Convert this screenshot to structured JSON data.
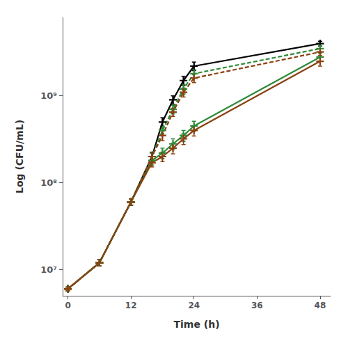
{
  "chart_data": {
    "type": "line",
    "xlabel": "Time (h)",
    "ylabel": "Log (CFU/mL)",
    "x": [
      0,
      6,
      12,
      16,
      18,
      20,
      22,
      24,
      48
    ],
    "series": [
      {
        "color": "#000000",
        "line_style": "solid",
        "values": [
          6000000.0,
          12000000.0,
          60000000.0,
          200000000.0,
          500000000.0,
          900000000.0,
          1500000000.0,
          2200000000.0,
          4000000000.0
        ],
        "error": [
          300000.0,
          1000000.0,
          5000000.0,
          20000000.0,
          60000000.0,
          100000000.0,
          180000000.0,
          250000000.0,
          250000000.0
        ]
      },
      {
        "color": "#2e8b3a",
        "line_style": "solid",
        "values": [
          6000000.0,
          12000000.0,
          60000000.0,
          180000000.0,
          220000000.0,
          280000000.0,
          350000000.0,
          450000000.0,
          2800000000.0
        ],
        "error": [
          300000.0,
          1000000.0,
          5000000.0,
          20000000.0,
          30000000.0,
          40000000.0,
          50000000.0,
          60000000.0,
          300000000.0
        ]
      },
      {
        "color": "#8B4010",
        "line_style": "solid",
        "values": [
          6000000.0,
          12000000.0,
          60000000.0,
          170000000.0,
          200000000.0,
          250000000.0,
          320000000.0,
          400000000.0,
          2500000000.0
        ],
        "error": [
          300000.0,
          1000000.0,
          5000000.0,
          18000000.0,
          25000000.0,
          35000000.0,
          45000000.0,
          55000000.0,
          300000000.0
        ]
      },
      {
        "color": "#2e8b3a",
        "line_style": "dashed",
        "values": [
          6000000.0,
          12000000.0,
          60000000.0,
          200000000.0,
          400000000.0,
          700000000.0,
          1200000000.0,
          1800000000.0,
          3500000000.0
        ],
        "error": [
          300000.0,
          1000000.0,
          5000000.0,
          25000000.0,
          50000000.0,
          80000000.0,
          150000000.0,
          200000000.0,
          300000000.0
        ]
      },
      {
        "color": "#8B4010",
        "line_style": "dashed",
        "values": [
          6000000.0,
          12000000.0,
          60000000.0,
          200000000.0,
          350000000.0,
          650000000.0,
          1100000000.0,
          1600000000.0,
          3200000000.0
        ],
        "error": [
          300000.0,
          1000000.0,
          5000000.0,
          25000000.0,
          45000000.0,
          70000000.0,
          130000000.0,
          180000000.0,
          280000000.0
        ]
      }
    ],
    "marker": "plus",
    "log": "y",
    "xlim": [
      -1,
      50
    ],
    "ylim": [
      5000000.0,
      8000000000.0
    ],
    "xticks": [
      0,
      12,
      24,
      36,
      48
    ],
    "yticks": [
      {
        "value": 10000000.0,
        "label": "10⁷"
      },
      {
        "value": 100000000.0,
        "label": "10⁸"
      },
      {
        "value": 1000000000.0,
        "label": "10⁹"
      }
    ],
    "grid": false
  }
}
